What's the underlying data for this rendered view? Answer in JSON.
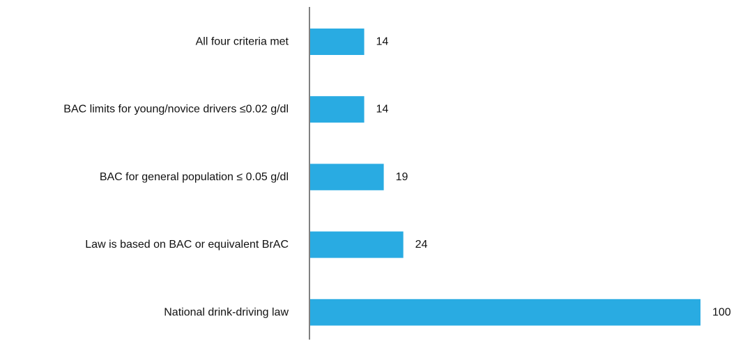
{
  "chart_data": {
    "type": "bar",
    "orientation": "horizontal",
    "categories": [
      "All four criteria met",
      "BAC limits for young/novice drivers ≤0.02 g/dl",
      "BAC for general population ≤ 0.05 g/dl",
      "Law is based on BAC or equivalent BrAC",
      "National drink-driving law"
    ],
    "values": [
      14,
      14,
      19,
      24,
      100
    ],
    "xlim": [
      0,
      100
    ],
    "bar_color": "#29abe2",
    "grid": false,
    "legend": "none",
    "data_labels": true
  }
}
